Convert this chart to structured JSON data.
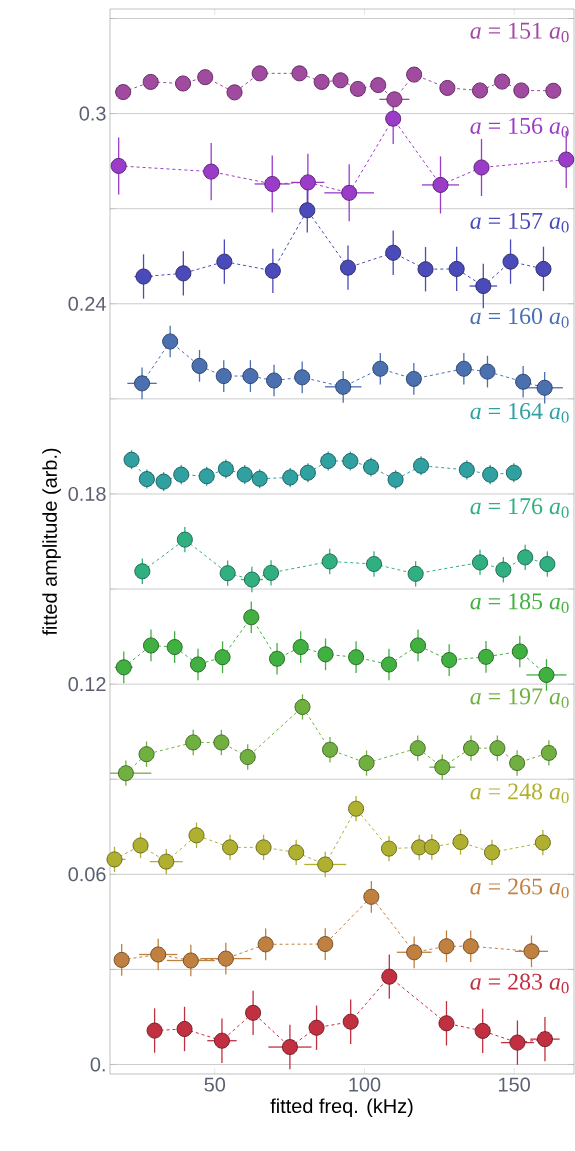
{
  "chart_data": {
    "type": "line",
    "xlabel": "fitted freq. (kHz)",
    "ylabel": "fitted amplitude (arb.)",
    "xlim": [
      15,
      170
    ],
    "ylim": [
      -0.003,
      0.333
    ],
    "xticks": [
      50,
      100,
      150
    ],
    "yticks": [
      {
        "value": 0,
        "label": "0."
      },
      {
        "value": 0.03,
        "label": null
      },
      0.06,
      {
        "value": 0.09,
        "label": null
      },
      0.12,
      {
        "value": 0.15,
        "label": null
      },
      0.18,
      {
        "value": 0.21,
        "label": null
      },
      0.24,
      {
        "value": 0.27,
        "label": null
      },
      0.3,
      {
        "value": 0.33,
        "label": null
      }
    ],
    "grid": "y",
    "marker": "circle",
    "line_style": "dashed",
    "series": [
      {
        "name": "*a* = 151 *a*$_{0}$",
        "color": "#a04aa0",
        "x": [
          19.4,
          28.6,
          39.4,
          46.8,
          56.6,
          65.0,
          78.3,
          85.7,
          92.0,
          97.8,
          104.6,
          110.0,
          116.6,
          127.7,
          138.6,
          146.0,
          152.4,
          163.1
        ],
        "values": [
          0.3068,
          0.31,
          0.3095,
          0.3115,
          0.3067,
          0.3127,
          0.3127,
          0.31,
          0.3105,
          0.3078,
          0.309,
          0.3045,
          0.3123,
          0.3081,
          0.3073,
          0.3101,
          0.3073,
          0.3072
        ],
        "errors": [
          0.002,
          0.002,
          0.002,
          0.002,
          0.002,
          0.002,
          0.002,
          0.002,
          0.002,
          0.002,
          0.002,
          0.002,
          0.002,
          0.002,
          0.002,
          0.002,
          0.002,
          0.002
        ],
        "xerrors": [
          null,
          null,
          null,
          null,
          null,
          null,
          null,
          null,
          null,
          null,
          null,
          5,
          null,
          null,
          null,
          null,
          null,
          null
        ]
      },
      {
        "name": "*a* = 156 *a*$_{0}$",
        "color": "#9a3cc8",
        "x": [
          17.9,
          48.8,
          69.2,
          81.1,
          94.9,
          109.6,
          125.4,
          139.1,
          167.4
        ],
        "values": [
          0.2835,
          0.2817,
          0.2778,
          0.2783,
          0.275,
          0.2984,
          0.2775,
          0.283,
          0.2855
        ],
        "errors": [
          0.009,
          0.009,
          0.009,
          0.009,
          0.009,
          0.008,
          0.009,
          0.009,
          0.009
        ],
        "xerrors": [
          null,
          null,
          5.9,
          5.5,
          8.3,
          null,
          6.2,
          null,
          null
        ]
      },
      {
        "name": "*a* = 157 *a*$_{0}$",
        "color": "#4a4ab8",
        "x": [
          26.2,
          39.5,
          53.2,
          69.4,
          80.9,
          94.5,
          109.6,
          120.4,
          130.8,
          139.7,
          148.8,
          159.8
        ],
        "values": [
          0.2486,
          0.2496,
          0.2533,
          0.2504,
          0.2695,
          0.2514,
          0.2561,
          0.2509,
          0.251,
          0.2456,
          0.2533,
          0.251
        ],
        "errors": [
          0.007,
          0.007,
          0.007,
          0.007,
          0.007,
          0.007,
          0.007,
          0.007,
          0.007,
          0.007,
          0.007,
          0.007
        ],
        "xerrors": [
          3,
          null,
          null,
          null,
          null,
          null,
          null,
          null,
          null,
          4.6,
          null,
          null
        ]
      },
      {
        "name": "*a* = 160 *a*$_{0}$",
        "color": "#4a70b0",
        "x": [
          25.7,
          35.1,
          44.9,
          53.0,
          61.9,
          69.8,
          79.2,
          92.9,
          105.3,
          116.5,
          133.2,
          141.1,
          153.0,
          160.2
        ],
        "values": [
          0.2149,
          0.2281,
          0.2204,
          0.2172,
          0.2172,
          0.2158,
          0.2168,
          0.2138,
          0.2195,
          0.2163,
          0.2195,
          0.2186,
          0.2154,
          0.2135
        ],
        "errors": [
          0.005,
          0.005,
          0.005,
          0.005,
          0.005,
          0.005,
          0.005,
          0.005,
          0.005,
          0.005,
          0.005,
          0.005,
          0.005,
          0.005
        ],
        "xerrors": [
          4.9,
          null,
          null,
          null,
          null,
          null,
          null,
          6.1,
          null,
          null,
          null,
          null,
          null,
          6.1
        ]
      },
      {
        "name": "*a* = 164 *a*$_{0}$",
        "color": "#30a0a0",
        "x": [
          22.2,
          27.3,
          32.9,
          38.8,
          47.3,
          53.7,
          60.0,
          65.0,
          75.2,
          81.1,
          87.9,
          95.3,
          102.2,
          110.4,
          118.9,
          134.2,
          142.0,
          149.9
        ],
        "values": [
          0.1908,
          0.1847,
          0.1839,
          0.1861,
          0.1856,
          0.1879,
          0.1861,
          0.1848,
          0.1852,
          0.1867,
          0.1904,
          0.1904,
          0.1885,
          0.1845,
          0.1889,
          0.1876,
          0.1861,
          0.1867
        ],
        "errors": [
          0.003,
          0.003,
          0.003,
          0.003,
          0.003,
          0.003,
          0.003,
          0.003,
          0.003,
          0.003,
          0.003,
          0.003,
          0.003,
          0.003,
          0.003,
          0.003,
          0.003,
          0.003
        ]
      },
      {
        "name": "*a* = 176 *a*$_{0}$",
        "color": "#30b080",
        "x": [
          25.8,
          40.0,
          54.3,
          62.4,
          68.8,
          88.4,
          103.2,
          117.1,
          138.6,
          146.4,
          153.7,
          161.1
        ],
        "values": [
          0.1556,
          0.1656,
          0.155,
          0.153,
          0.1551,
          0.1587,
          0.1579,
          0.1548,
          0.1584,
          0.1561,
          0.16,
          0.1579
        ],
        "errors": [
          0.004,
          0.004,
          0.004,
          0.004,
          0.004,
          0.004,
          0.004,
          0.004,
          0.004,
          0.004,
          0.004,
          0.004
        ],
        "xerrors": [
          null,
          null,
          null,
          3.7,
          null,
          null,
          null,
          null,
          null,
          null,
          null,
          null
        ]
      },
      {
        "name": "*a* = 185 *a*$_{0}$",
        "color": "#40b040",
        "x": [
          19.6,
          28.7,
          36.6,
          44.4,
          52.6,
          62.2,
          70.8,
          78.7,
          87.0,
          97.2,
          108.2,
          117.9,
          128.3,
          140.6,
          151.9,
          160.8
        ],
        "values": [
          0.1253,
          0.1322,
          0.1317,
          0.1262,
          0.1285,
          0.1411,
          0.128,
          0.1317,
          0.1294,
          0.1285,
          0.1262,
          0.1322,
          0.1276,
          0.1286,
          0.1303,
          0.1229
        ],
        "errors": [
          0.005,
          0.005,
          0.005,
          0.005,
          0.005,
          0.005,
          0.005,
          0.005,
          0.005,
          0.005,
          0.005,
          0.005,
          0.005,
          0.005,
          0.005,
          0.005
        ],
        "xerrors": [
          3,
          null,
          null,
          null,
          null,
          null,
          null,
          null,
          null,
          null,
          null,
          null,
          null,
          null,
          null,
          6.7
        ]
      },
      {
        "name": "*a* = 197 *a*$_{0}$",
        "color": "#70b040",
        "x": [
          20.3,
          27.2,
          42.8,
          52.2,
          61.0,
          79.3,
          88.5,
          100.7,
          117.8,
          126.0,
          135.6,
          144.4,
          151.0,
          161.6
        ],
        "values": [
          0.0919,
          0.0979,
          0.1016,
          0.1016,
          0.097,
          0.1128,
          0.0993,
          0.0951,
          0.0998,
          0.0938,
          0.0998,
          0.0998,
          0.0951,
          0.0983
        ],
        "errors": [
          0.004,
          0.004,
          0.004,
          0.004,
          0.004,
          0.004,
          0.004,
          0.004,
          0.004,
          0.004,
          0.004,
          0.004,
          0.004,
          0.004
        ],
        "xerrors": [
          8.5,
          null,
          null,
          null,
          null,
          null,
          null,
          null,
          null,
          4.3,
          null,
          null,
          null,
          null
        ]
      },
      {
        "name": "*a* = 248 *a*$_{0}$",
        "color": "#b0b030",
        "x": [
          16.5,
          25.2,
          33.8,
          43.9,
          55.1,
          66.3,
          77.2,
          86.9,
          97.2,
          108.2,
          118.3,
          122.5,
          132.1,
          142.6,
          159.6
        ],
        "values": [
          0.0647,
          0.0691,
          0.064,
          0.0723,
          0.0685,
          0.0685,
          0.0669,
          0.0631,
          0.0807,
          0.0681,
          0.0685,
          0.0686,
          0.0702,
          0.0669,
          0.07
        ],
        "errors": [
          0.004,
          0.004,
          0.004,
          0.004,
          0.004,
          0.004,
          0.004,
          0.004,
          0.004,
          0.004,
          0.004,
          0.004,
          0.004,
          0.004,
          0.004
        ],
        "xerrors": [
          3.7,
          null,
          5.5,
          null,
          null,
          null,
          null,
          7,
          null,
          null,
          null,
          null,
          null,
          null,
          null
        ]
      },
      {
        "name": "*a* = 265 *a*$_{0}$",
        "color": "#c08040",
        "x": [
          18.9,
          31.1,
          42.0,
          53.7,
          67.0,
          86.9,
          102.3,
          116.6,
          127.4,
          135.5,
          155.8
        ],
        "values": [
          0.033,
          0.0347,
          0.0328,
          0.0334,
          0.0379,
          0.038,
          0.0529,
          0.0354,
          0.0373,
          0.0373,
          0.0357
        ],
        "errors": [
          0.005,
          0.005,
          0.005,
          0.005,
          0.005,
          0.005,
          0.005,
          0.005,
          0.005,
          0.005,
          0.005
        ],
        "xerrors": [
          null,
          6.4,
          8,
          8.5,
          null,
          null,
          null,
          5.8,
          null,
          null,
          5.5
        ]
      },
      {
        "name": "*a* = 283 *a*$_{0}$",
        "color": "#c03040",
        "x": [
          29.9,
          39.9,
          52.4,
          62.8,
          75.1,
          84.0,
          95.4,
          108.3,
          127.4,
          139.5,
          151.1,
          160.3
        ],
        "values": [
          0.0107,
          0.0112,
          0.0075,
          0.0163,
          0.0055,
          0.0116,
          0.0135,
          0.0277,
          0.013,
          0.0106,
          0.0069,
          0.008
        ],
        "errors": [
          0.007,
          0.007,
          0.007,
          0.007,
          0.007,
          0.007,
          0.007,
          0.007,
          0.007,
          0.007,
          0.007,
          0.007
        ],
        "xerrors": [
          null,
          null,
          4.9,
          null,
          7.2,
          null,
          null,
          null,
          null,
          null,
          5.5,
          4.9
        ]
      }
    ]
  }
}
